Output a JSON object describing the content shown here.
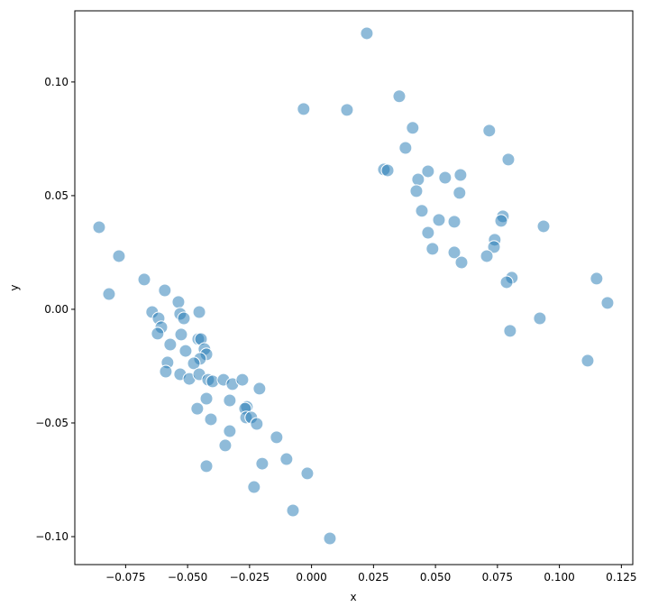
{
  "chart_data": {
    "type": "scatter",
    "title": "",
    "xlabel": "x",
    "ylabel": "y",
    "xlim": [
      -0.0955,
      0.1296
    ],
    "ylim": [
      -0.1123,
      0.1313
    ],
    "xticks": [
      -0.075,
      -0.05,
      -0.025,
      0.0,
      0.025,
      0.05,
      0.075,
      0.1,
      0.125
    ],
    "xtick_labels": [
      "−0.075",
      "−0.050",
      "−0.025",
      "0.000",
      "0.025",
      "0.050",
      "0.075",
      "0.100",
      "0.125"
    ],
    "yticks": [
      0.1,
      0.05,
      0.0,
      -0.05,
      -0.1
    ],
    "ytick_labels": [
      "0.10",
      "0.05",
      "0.00",
      "−0.05",
      "−0.10"
    ],
    "grid": false,
    "marker_color": "#1f77b4",
    "marker_alpha": 0.5,
    "marker_edge": "#ffffff",
    "points": [
      [
        0.0223,
        0.1214
      ],
      [
        0.0354,
        0.0937
      ],
      [
        -0.0032,
        0.0881
      ],
      [
        0.0143,
        0.0877
      ],
      [
        0.0408,
        0.0798
      ],
      [
        0.0717,
        0.0786
      ],
      [
        0.0379,
        0.071
      ],
      [
        0.0794,
        0.0659
      ],
      [
        0.0292,
        0.0615
      ],
      [
        0.0307,
        0.0611
      ],
      [
        0.047,
        0.0607
      ],
      [
        0.043,
        0.0571
      ],
      [
        0.0601,
        0.0591
      ],
      [
        0.0539,
        0.0579
      ],
      [
        0.0597,
        0.0512
      ],
      [
        0.0423,
        0.052
      ],
      [
        0.0445,
        0.0433
      ],
      [
        0.0772,
        0.0409
      ],
      [
        0.0514,
        0.0393
      ],
      [
        0.0576,
        0.0385
      ],
      [
        0.0765,
        0.0389
      ],
      [
        0.047,
        0.0337
      ],
      [
        0.0488,
        0.0266
      ],
      [
        0.0576,
        0.025
      ],
      [
        0.0739,
        0.0306
      ],
      [
        0.0736,
        0.0274
      ],
      [
        0.0936,
        0.0365
      ],
      [
        0.0707,
        0.0234
      ],
      [
        0.0605,
        0.0206
      ],
      [
        0.0808,
        0.0139
      ],
      [
        0.0787,
        0.0119
      ],
      [
        0.115,
        0.0135
      ],
      [
        0.1194,
        0.0028
      ],
      [
        0.0921,
        -0.004
      ],
      [
        0.0801,
        -0.0095
      ],
      [
        0.1114,
        -0.0226
      ],
      [
        -0.0857,
        0.0361
      ],
      [
        -0.0777,
        0.0234
      ],
      [
        -0.0817,
        0.0067
      ],
      [
        -0.0675,
        0.0131
      ],
      [
        -0.0592,
        0.0083
      ],
      [
        -0.0537,
        0.0032
      ],
      [
        -0.0643,
        -0.0012
      ],
      [
        -0.053,
        -0.002
      ],
      [
        -0.0515,
        -0.004
      ],
      [
        -0.0453,
        -0.0012
      ],
      [
        -0.0617,
        -0.004
      ],
      [
        -0.0606,
        -0.0079
      ],
      [
        -0.0621,
        -0.0107
      ],
      [
        -0.0526,
        -0.0111
      ],
      [
        -0.057,
        -0.0155
      ],
      [
        -0.0457,
        -0.0131
      ],
      [
        -0.0446,
        -0.0131
      ],
      [
        -0.0508,
        -0.0183
      ],
      [
        -0.0432,
        -0.0175
      ],
      [
        -0.0424,
        -0.0198
      ],
      [
        -0.045,
        -0.0218
      ],
      [
        -0.0475,
        -0.0238
      ],
      [
        -0.0581,
        -0.0234
      ],
      [
        -0.0588,
        -0.0274
      ],
      [
        -0.053,
        -0.0286
      ],
      [
        -0.0493,
        -0.0306
      ],
      [
        -0.0453,
        -0.0286
      ],
      [
        -0.0417,
        -0.031
      ],
      [
        -0.0399,
        -0.0317
      ],
      [
        -0.0355,
        -0.031
      ],
      [
        -0.0319,
        -0.0329
      ],
      [
        -0.0279,
        -0.031
      ],
      [
        -0.021,
        -0.0349
      ],
      [
        -0.0424,
        -0.0393
      ],
      [
        -0.033,
        -0.0401
      ],
      [
        -0.0461,
        -0.0437
      ],
      [
        -0.0261,
        -0.0429
      ],
      [
        -0.0268,
        -0.0437
      ],
      [
        -0.0264,
        -0.0476
      ],
      [
        -0.0243,
        -0.0476
      ],
      [
        -0.0221,
        -0.0504
      ],
      [
        -0.0406,
        -0.0484
      ],
      [
        -0.033,
        -0.0536
      ],
      [
        -0.0141,
        -0.0563
      ],
      [
        -0.0348,
        -0.0599
      ],
      [
        -0.0199,
        -0.0679
      ],
      [
        -0.0101,
        -0.0659
      ],
      [
        -0.0424,
        -0.069
      ],
      [
        -0.0232,
        -0.0782
      ],
      [
        -0.0017,
        -0.0722
      ],
      [
        -0.0075,
        -0.0885
      ],
      [
        0.0074,
        -0.1008
      ]
    ]
  }
}
